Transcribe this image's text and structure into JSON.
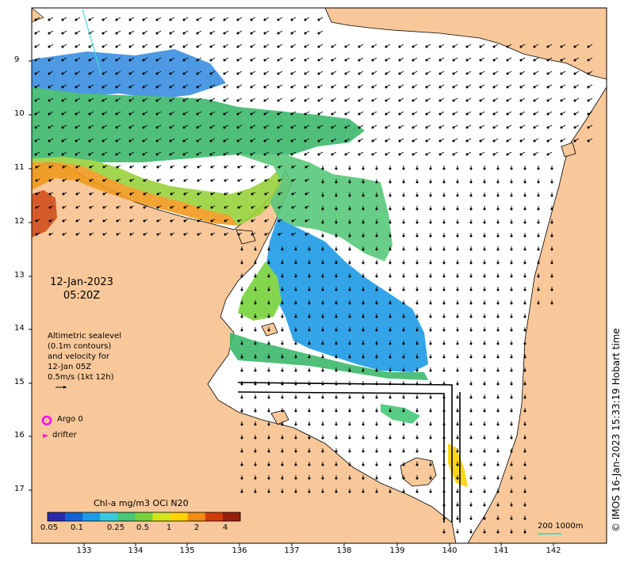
{
  "map": {
    "date_line1": "12-Jan-2023",
    "date_line2": "05:20Z",
    "altimetry_lines": [
      "Altimetric sealevel",
      "(0.1m contours)",
      "and velocity for",
      "12-Jan 05Z",
      "0.5m/s (1kt 12h)"
    ],
    "legend": {
      "argo_label": "Argo 0",
      "drifter_label": "drifter",
      "argo_color": "#ff00ff",
      "drifter_color": "#ff00ff"
    },
    "colorbar": {
      "title": "Chl-a mg/m3 OCi N20",
      "ticks": [
        "0.05",
        "0.1",
        "0.25",
        "0.5",
        "1",
        "2",
        "4"
      ],
      "colors": [
        "#2a2aa8",
        "#1464d2",
        "#1e9be6",
        "#3cc8dc",
        "#46c878",
        "#78d23c",
        "#d2e61e",
        "#ffd200",
        "#f08c14",
        "#d23c0a",
        "#961e0a"
      ]
    },
    "scale": {
      "label": "200  1000m",
      "color": "#40e0d0"
    },
    "y_ticks": [
      "9",
      "10",
      "11",
      "12",
      "13",
      "14",
      "15",
      "16",
      "17"
    ],
    "x_ticks": [
      "133",
      "134",
      "135",
      "136",
      "137",
      "138",
      "139",
      "140",
      "141",
      "142"
    ],
    "credit": "© IMOS 16-Jan-2023 15:33:19 Hobart time",
    "colors": {
      "land": "#f9c89a",
      "sea": "#ffffff",
      "arrow": "#000000"
    }
  }
}
